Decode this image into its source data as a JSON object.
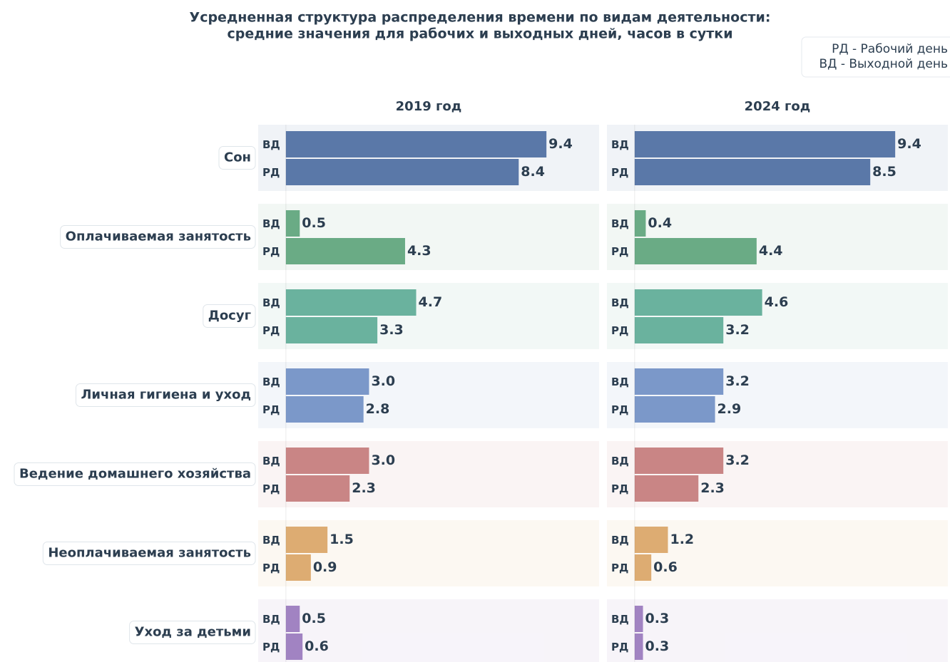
{
  "chart_data": {
    "type": "bar",
    "title": [
      "Усредненная структура распределения времени по видам деятельности:",
      "средние значения для рабочих и выходных дней, часов в сутки"
    ],
    "legend": [
      "РД - Рабочий день",
      "ВД - Выходной день"
    ],
    "categories": [
      "Сон",
      "Оплачиваемая занятость",
      "Досуг",
      "Личная гигиена и уход",
      "Ведение домашнего хозяйства",
      "Неоплачиваемая занятость",
      "Уход за детьми"
    ],
    "colors": [
      "#5a78a8",
      "#6aab85",
      "#6ab29e",
      "#7b98c9",
      "#c98585",
      "#ddac72",
      "#a183c2"
    ],
    "xlim": [
      -1,
      11.3
    ],
    "panels": [
      {
        "title": "2019 год",
        "series": [
          {
            "name": "ВД",
            "values": [
              9.4,
              0.5,
              4.7,
              3.0,
              3.0,
              1.5,
              0.5
            ],
            "value_labels": [
              "9.4",
              "0.5",
              "4.7",
              "3.0",
              "3.0",
              "1.5",
              "0.5"
            ]
          },
          {
            "name": "РД",
            "values": [
              8.4,
              4.3,
              3.3,
              2.8,
              2.3,
              0.9,
              0.6
            ],
            "value_labels": [
              "8.4",
              "4.3",
              "3.3",
              "2.8",
              "2.3",
              "0.9",
              "0.6"
            ]
          }
        ]
      },
      {
        "title": "2024 год",
        "series": [
          {
            "name": "ВД",
            "values": [
              9.4,
              0.4,
              4.6,
              3.2,
              3.2,
              1.2,
              0.3
            ],
            "value_labels": [
              "9.4",
              "0.4",
              "4.6",
              "3.2",
              "3.2",
              "1.2",
              "0.3"
            ]
          },
          {
            "name": "РД",
            "values": [
              8.5,
              4.4,
              3.2,
              2.9,
              2.3,
              0.6,
              0.3
            ],
            "value_labels": [
              "8.5",
              "4.4",
              "3.2",
              "2.9",
              "2.3",
              "0.6",
              "0.3"
            ]
          }
        ]
      }
    ]
  }
}
